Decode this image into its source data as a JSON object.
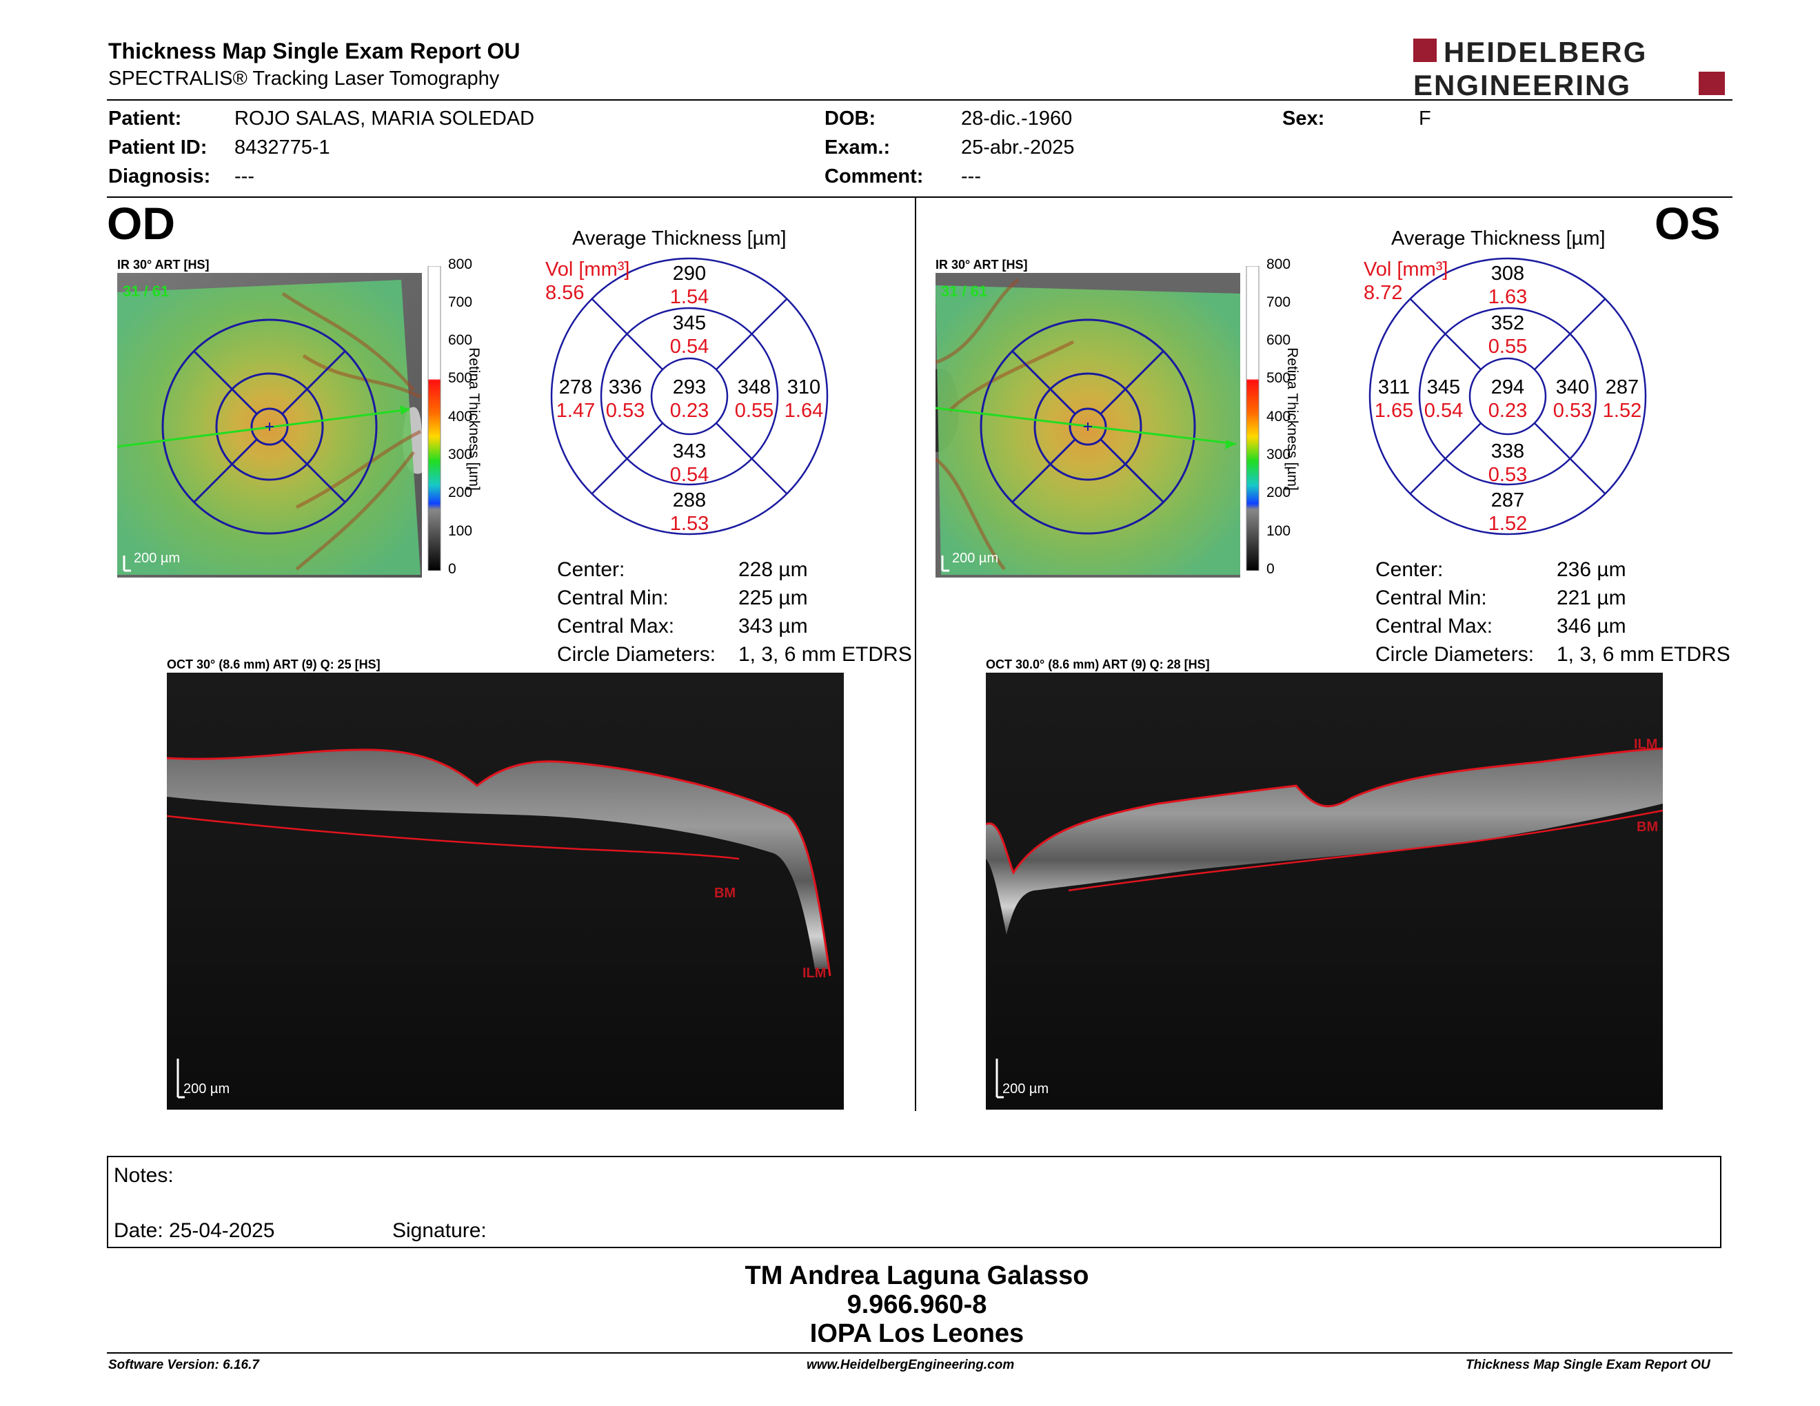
{
  "header": {
    "title": "Thickness Map Single Exam Report OU",
    "subtitle": "SPECTRALIS® Tracking Laser Tomography",
    "logo_line1": "HEIDELBERG",
    "logo_line2": "ENGINEERING"
  },
  "patient": {
    "patient_label": "Patient:",
    "patient_value": "ROJO SALAS, MARIA SOLEDAD",
    "id_label": "Patient ID:",
    "id_value": "8432775-1",
    "diagnosis_label": "Diagnosis:",
    "diagnosis_value": "---",
    "dob_label": "DOB:",
    "dob_value": "28-dic.-1960",
    "exam_label": "Exam.:",
    "exam_value": "25-abr.-2025",
    "comment_label": "Comment:",
    "comment_value": "---",
    "sex_label": "Sex:",
    "sex_value": "F"
  },
  "colorbar": {
    "ticks": [
      "800",
      "700",
      "600",
      "500",
      "400",
      "300",
      "200",
      "100",
      "0"
    ],
    "label": "Retina  Thickness [µm]"
  },
  "od": {
    "eye_label": "OD",
    "ir_title": "IR 30° ART [HS]",
    "frame_counter": "31 / 61",
    "scale_bar": "200 µm",
    "ring_title": "Average Thickness [µm]",
    "vol_label": "Vol [mm³]",
    "vol_value": "8.56",
    "sectors": {
      "outer_superior": {
        "t": "290",
        "v": "1.54"
      },
      "inner_superior": {
        "t": "345",
        "v": "0.54"
      },
      "outer_temporal": {
        "t": "278",
        "v": "1.47"
      },
      "inner_temporal": {
        "t": "336",
        "v": "0.53"
      },
      "center": {
        "t": "293",
        "v": "0.23"
      },
      "inner_nasal": {
        "t": "348",
        "v": "0.55"
      },
      "outer_nasal": {
        "t": "310",
        "v": "1.64"
      },
      "inner_inferior": {
        "t": "343",
        "v": "0.54"
      },
      "outer_inferior": {
        "t": "288",
        "v": "1.53"
      }
    },
    "stats": [
      {
        "label": "Center:",
        "value": "228 µm"
      },
      {
        "label": "Central Min:",
        "value": "225 µm"
      },
      {
        "label": "Central Max:",
        "value": "343 µm"
      },
      {
        "label": "Circle Diameters:",
        "value": "1, 3, 6 mm ETDRS"
      }
    ],
    "oct_title": "OCT 30° (8.6 mm) ART (9) Q: 25 [HS]",
    "oct_scale": "200 µm",
    "label_bm": "BM",
    "label_ilm": "ILM"
  },
  "os": {
    "eye_label": "OS",
    "ir_title": "IR 30° ART [HS]",
    "frame_counter": "31 / 61",
    "scale_bar": "200 µm",
    "ring_title": "Average Thickness [µm]",
    "vol_label": "Vol [mm³]",
    "vol_value": "8.72",
    "sectors": {
      "outer_superior": {
        "t": "308",
        "v": "1.63"
      },
      "inner_superior": {
        "t": "352",
        "v": "0.55"
      },
      "outer_temporal": {
        "t": "311",
        "v": "1.65"
      },
      "inner_temporal": {
        "t": "345",
        "v": "0.54"
      },
      "center": {
        "t": "294",
        "v": "0.23"
      },
      "inner_nasal": {
        "t": "340",
        "v": "0.53"
      },
      "outer_nasal": {
        "t": "287",
        "v": "1.52"
      },
      "inner_inferior": {
        "t": "338",
        "v": "0.53"
      },
      "outer_inferior": {
        "t": "287",
        "v": "1.52"
      }
    },
    "stats": [
      {
        "label": "Center:",
        "value": "236 µm"
      },
      {
        "label": "Central Min:",
        "value": "221 µm"
      },
      {
        "label": "Central Max:",
        "value": "346 µm"
      },
      {
        "label": "Circle Diameters:",
        "value": "1, 3, 6 mm ETDRS"
      }
    ],
    "oct_title": "OCT 30.0° (8.6 mm) ART (9) Q: 28 [HS]",
    "oct_scale": "200 µm",
    "label_bm": "BM",
    "label_ilm": "ILM"
  },
  "notes": {
    "notes_label": "Notes:",
    "date_label": "Date: 25-04-2025",
    "signature_label": "Signature:"
  },
  "signature_block": {
    "line1": "TM Andrea Laguna Galasso",
    "line2": "9.966.960-8",
    "line3": "IOPA Los Leones"
  },
  "footer": {
    "software": "Software Version: 6.16.7",
    "website": "www.HeidelbergEngineering.com",
    "report": "Thickness Map Single Exam Report OU"
  },
  "colors": {
    "accent_red": "#e1141e",
    "logo_red": "#9b1b30",
    "ring_blue": "#1a1aa0"
  }
}
